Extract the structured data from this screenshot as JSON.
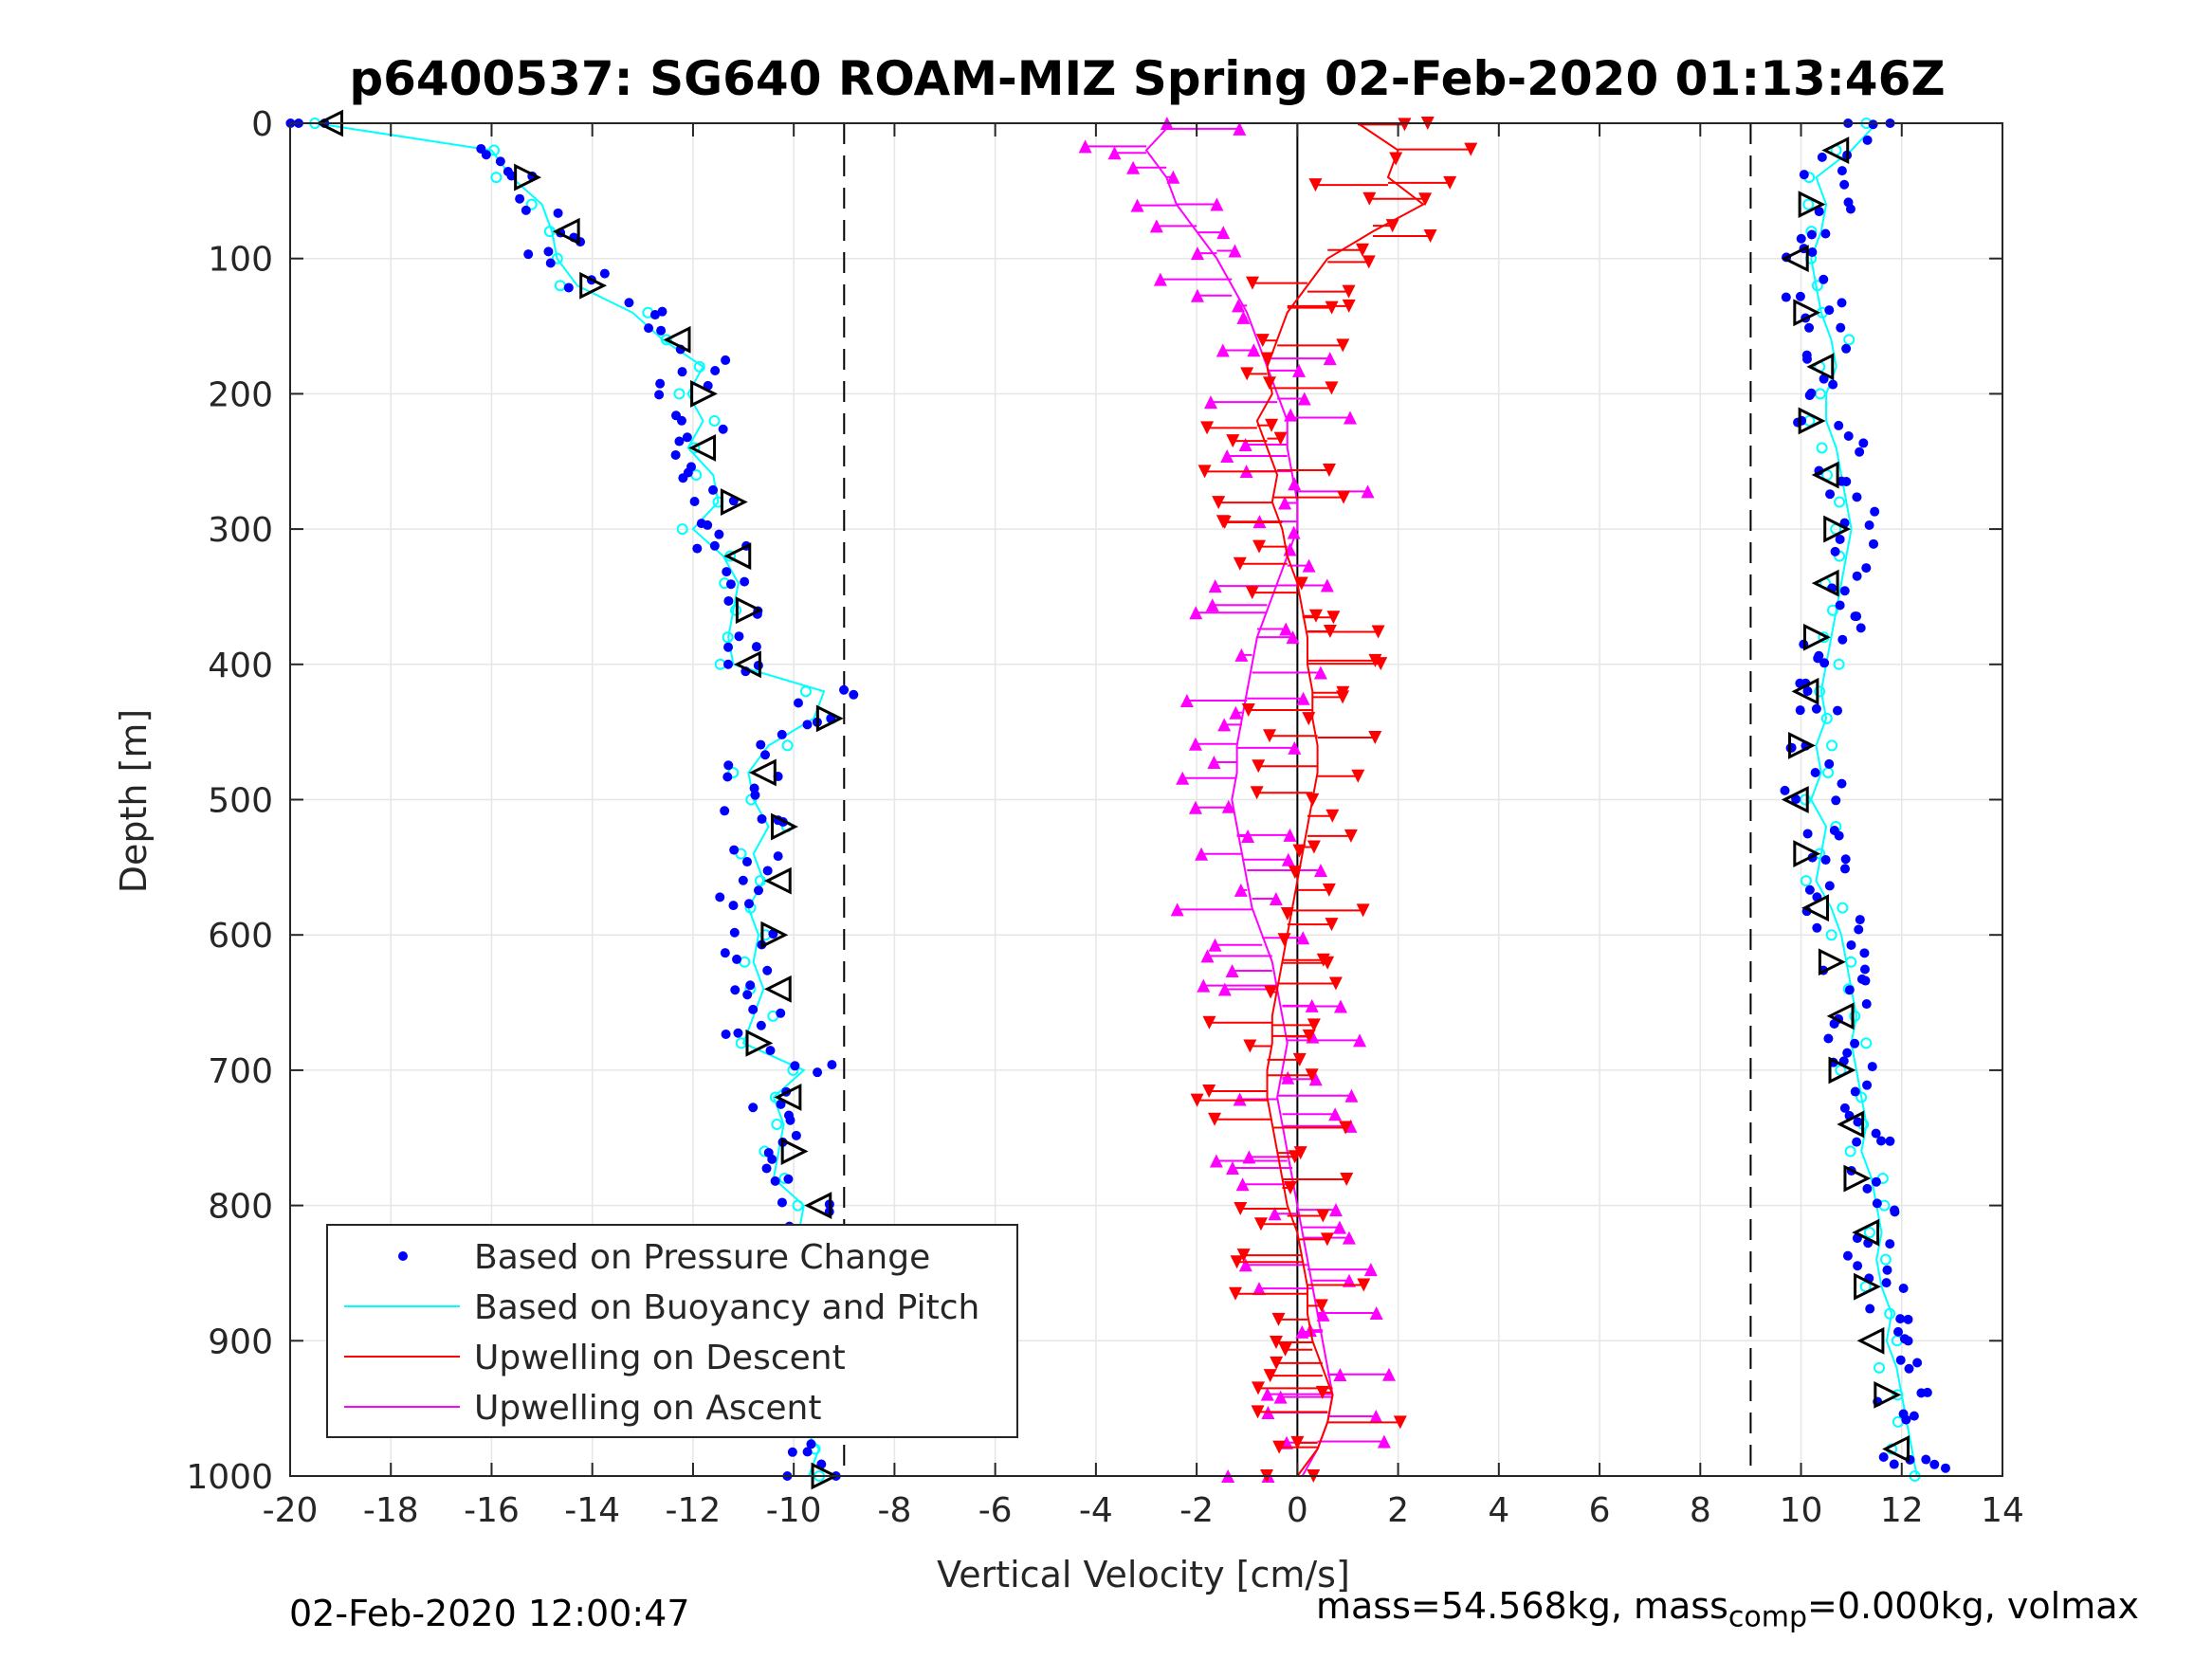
{
  "chart_data": {
    "type": "scatter",
    "title": "p6400537: SG640 ROAM-MIZ Spring 02-Feb-2020 01:13:46Z",
    "xlabel": "Vertical Velocity [cm/s]",
    "ylabel": "Depth [m]",
    "xlim": [
      -20,
      14
    ],
    "ylim": [
      1000,
      0
    ],
    "y_reversed": true,
    "grid": true,
    "legend_position": "bottom-left",
    "xticks": [
      "-20",
      "-18",
      "-16",
      "-14",
      "-12",
      "-10",
      "-8",
      "-6",
      "-4",
      "-2",
      "0",
      "2",
      "4",
      "6",
      "8",
      "10",
      "12",
      "14"
    ],
    "yticks": [
      "0",
      "100",
      "200",
      "300",
      "400",
      "500",
      "600",
      "700",
      "800",
      "900",
      "1000"
    ],
    "reference_lines": [
      {
        "x": -9,
        "style": "dashed"
      },
      {
        "x": 9,
        "style": "dashed"
      },
      {
        "x": 0,
        "style": "solid"
      }
    ],
    "descent_profile": {
      "depth": [
        0,
        20,
        40,
        60,
        80,
        100,
        120,
        140,
        160,
        180,
        200,
        220,
        240,
        260,
        280,
        300,
        320,
        340,
        360,
        380,
        400,
        420,
        440,
        460,
        480,
        500,
        520,
        540,
        560,
        580,
        600,
        620,
        640,
        660,
        680,
        700,
        720,
        740,
        760,
        780,
        800,
        820,
        840,
        860,
        880,
        900,
        920,
        940,
        960,
        980,
        1000
      ],
      "velocity": [
        -19.5,
        -16.0,
        -15.6,
        -15.0,
        -14.8,
        -14.7,
        -14.3,
        -13.2,
        -12.6,
        -11.8,
        -12.1,
        -11.8,
        -12.1,
        -11.6,
        -11.5,
        -12.0,
        -11.4,
        -11.1,
        -11.2,
        -11.3,
        -11.2,
        -9.4,
        -9.6,
        -10.5,
        -10.9,
        -10.8,
        -10.5,
        -10.8,
        -10.6,
        -10.9,
        -10.7,
        -10.8,
        -10.6,
        -10.8,
        -11.0,
        -9.8,
        -10.4,
        -10.2,
        -10.3,
        -10.4,
        -9.8,
        -9.9,
        -10.2,
        -9.8,
        -10.1,
        -10.0,
        -9.8,
        -9.6,
        -9.9,
        -9.5,
        -9.7
      ]
    },
    "ascent_profile": {
      "depth": [
        0,
        20,
        40,
        60,
        80,
        100,
        120,
        140,
        160,
        180,
        200,
        220,
        240,
        260,
        280,
        300,
        320,
        340,
        360,
        380,
        400,
        420,
        440,
        460,
        480,
        500,
        520,
        540,
        560,
        580,
        600,
        620,
        640,
        660,
        680,
        700,
        720,
        740,
        760,
        780,
        800,
        820,
        840,
        860,
        880,
        900,
        920,
        940,
        960,
        980,
        1000
      ],
      "velocity": [
        11.5,
        11.0,
        10.3,
        10.5,
        10.4,
        10.2,
        10.3,
        10.4,
        10.6,
        10.7,
        10.5,
        10.5,
        10.7,
        10.8,
        10.9,
        11.0,
        10.9,
        10.8,
        10.7,
        10.6,
        10.5,
        10.4,
        10.5,
        10.3,
        10.4,
        10.2,
        10.5,
        10.4,
        10.3,
        10.6,
        10.8,
        10.9,
        11.0,
        11.1,
        11.0,
        11.1,
        11.2,
        11.3,
        11.2,
        11.4,
        11.5,
        11.6,
        11.5,
        11.6,
        11.8,
        11.7,
        11.9,
        12.0,
        12.1,
        12.2,
        12.3
      ]
    },
    "upwelling_descent": {
      "depth": [
        0,
        20,
        40,
        60,
        80,
        100,
        120,
        140,
        160,
        180,
        200,
        220,
        240,
        260,
        280,
        300,
        320,
        340,
        360,
        380,
        400,
        420,
        440,
        460,
        480,
        500,
        520,
        540,
        560,
        580,
        600,
        620,
        640,
        660,
        680,
        700,
        720,
        740,
        760,
        780,
        800,
        820,
        840,
        860,
        880,
        900,
        920,
        940,
        960,
        980,
        1000
      ],
      "velocity": [
        1.2,
        2.0,
        1.8,
        2.5,
        1.5,
        0.6,
        0.2,
        -0.2,
        -0.4,
        -0.6,
        -0.5,
        -0.8,
        -0.6,
        -0.4,
        -0.5,
        -0.3,
        -0.2,
        0.0,
        0.1,
        0.2,
        0.2,
        0.3,
        0.3,
        0.4,
        0.4,
        0.3,
        0.2,
        0.1,
        0.0,
        -0.1,
        -0.2,
        -0.3,
        -0.4,
        -0.5,
        -0.5,
        -0.6,
        -0.6,
        -0.5,
        -0.4,
        -0.3,
        -0.2,
        0.0,
        0.1,
        0.2,
        0.2,
        0.3,
        0.5,
        0.7,
        0.6,
        0.4,
        0.0
      ]
    },
    "upwelling_ascent": {
      "depth": [
        0,
        20,
        40,
        60,
        80,
        100,
        120,
        140,
        160,
        180,
        200,
        220,
        240,
        260,
        280,
        300,
        320,
        340,
        360,
        380,
        400,
        420,
        440,
        460,
        480,
        500,
        520,
        540,
        560,
        580,
        600,
        620,
        640,
        660,
        680,
        700,
        720,
        740,
        760,
        780,
        800,
        820,
        840,
        860,
        880,
        900,
        920,
        940,
        960,
        980,
        1000
      ],
      "velocity": [
        -2.5,
        -3.0,
        -2.6,
        -2.4,
        -2.0,
        -1.6,
        -1.3,
        -1.0,
        -0.8,
        -0.6,
        -0.4,
        -0.2,
        -0.2,
        -0.1,
        0.0,
        0.0,
        -0.2,
        -0.4,
        -0.6,
        -0.8,
        -0.9,
        -1.0,
        -1.1,
        -1.2,
        -1.2,
        -1.3,
        -1.2,
        -1.1,
        -1.0,
        -0.9,
        -0.7,
        -0.5,
        -0.4,
        -0.3,
        -0.2,
        -0.3,
        -0.4,
        -0.3,
        -0.2,
        -0.1,
        0.0,
        0.1,
        0.2,
        0.3,
        0.4,
        0.5,
        0.6,
        0.7,
        0.6,
        0.4,
        0.1
      ]
    },
    "legend": [
      {
        "label": "Based on Pressure Change",
        "color": "#0000ff",
        "marker": "dot"
      },
      {
        "label": "Based on Buoyancy and Pitch",
        "color": "#00ffff",
        "marker": "line"
      },
      {
        "label": "Upwelling on Descent",
        "color": "#ff0000",
        "marker": "line"
      },
      {
        "label": "Upwelling on Ascent",
        "color": "#ff00ff",
        "marker": "line"
      }
    ],
    "colors": {
      "pressure": "#0000ff",
      "buoyancy": "#00ffff",
      "descent": "#ff0000",
      "ascent": "#ff00ff"
    }
  },
  "footer": {
    "timestamp": "02-Feb-2020 12:00:47",
    "mass_text": "mass=54.568kg, mass",
    "mass_sub": "comp",
    "mass_rest": "=0.000kg, volmax"
  }
}
